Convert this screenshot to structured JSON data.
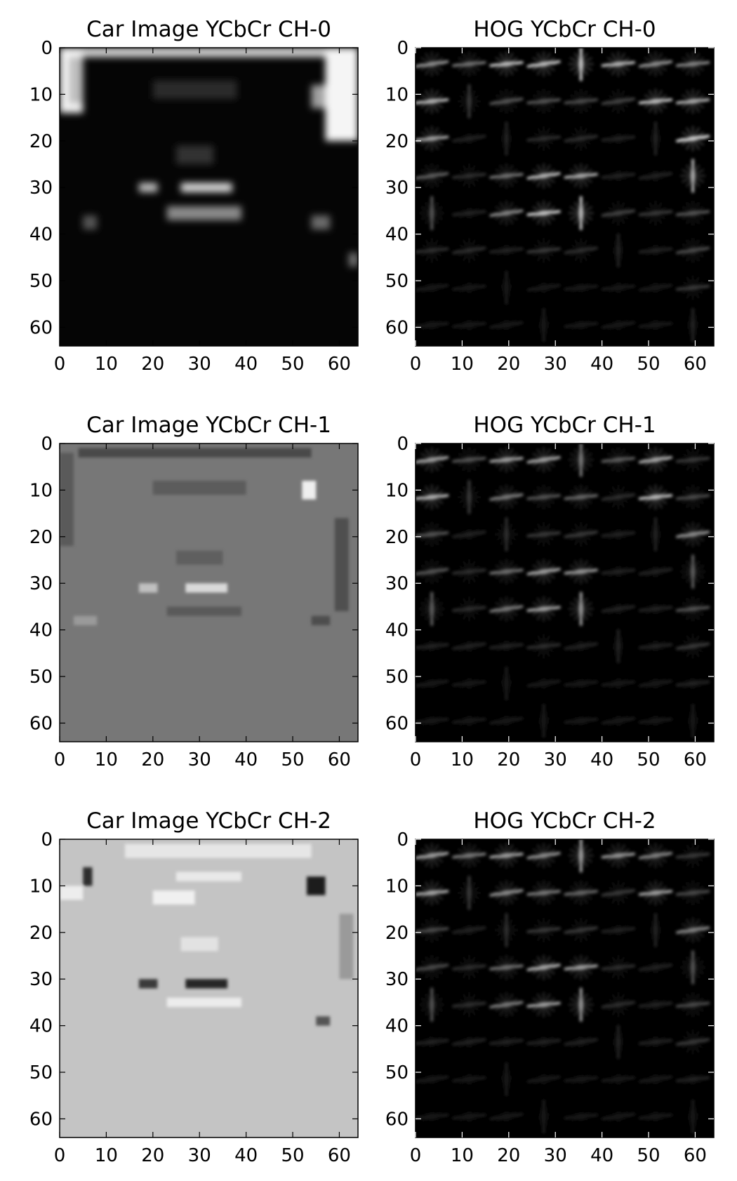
{
  "chart_data": [
    {
      "type": "heatmap",
      "title": "Car Image YCbCr CH-0",
      "colormap": "gray",
      "xlim": [
        0,
        64
      ],
      "ylim": [
        0,
        64
      ],
      "xticks": [
        0,
        10,
        20,
        30,
        40,
        50,
        60
      ],
      "yticks": [
        0,
        10,
        20,
        30,
        40,
        50,
        60
      ],
      "grid": false
    },
    {
      "type": "heatmap",
      "title": "HOG YCbCr CH-0",
      "colormap": "gray",
      "xlim": [
        0,
        64
      ],
      "ylim": [
        0,
        64
      ],
      "xticks": [
        0,
        10,
        20,
        30,
        40,
        50,
        60
      ],
      "yticks": [
        0,
        10,
        20,
        30,
        40,
        50,
        60
      ],
      "grid": false
    },
    {
      "type": "heatmap",
      "title": "Car Image YCbCr CH-1",
      "colormap": "gray",
      "xlim": [
        0,
        64
      ],
      "ylim": [
        0,
        64
      ],
      "xticks": [
        0,
        10,
        20,
        30,
        40,
        50,
        60
      ],
      "yticks": [
        0,
        10,
        20,
        30,
        40,
        50,
        60
      ],
      "grid": false
    },
    {
      "type": "heatmap",
      "title": "HOG YCbCr CH-1",
      "colormap": "gray",
      "xlim": [
        0,
        64
      ],
      "ylim": [
        0,
        64
      ],
      "xticks": [
        0,
        10,
        20,
        30,
        40,
        50,
        60
      ],
      "yticks": [
        0,
        10,
        20,
        30,
        40,
        50,
        60
      ],
      "grid": false
    },
    {
      "type": "heatmap",
      "title": "Car Image YCbCr CH-2",
      "colormap": "gray",
      "xlim": [
        0,
        64
      ],
      "ylim": [
        0,
        64
      ],
      "xticks": [
        0,
        10,
        20,
        30,
        40,
        50,
        60
      ],
      "yticks": [
        0,
        10,
        20,
        30,
        40,
        50,
        60
      ],
      "grid": false
    },
    {
      "type": "heatmap",
      "title": "HOG YCbCr CH-2",
      "colormap": "gray",
      "xlim": [
        0,
        64
      ],
      "ylim": [
        0,
        64
      ],
      "xticks": [
        0,
        10,
        20,
        30,
        40,
        50,
        60
      ],
      "yticks": [
        0,
        10,
        20,
        30,
        40,
        50,
        60
      ],
      "grid": false
    }
  ]
}
